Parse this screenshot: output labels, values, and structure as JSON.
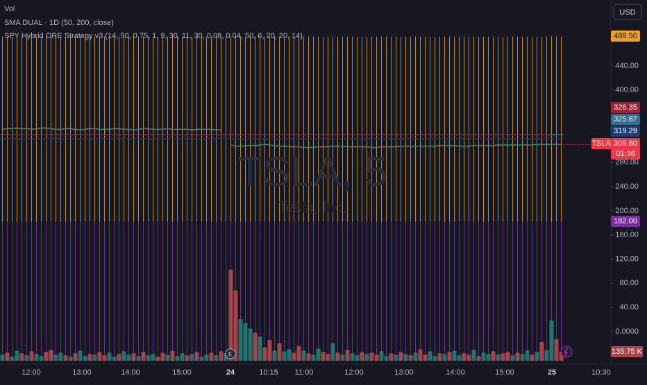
{
  "chart_data": {
    "type": "line",
    "legend": [
      "Vol",
      "SMA DUAL · 1D (50, 200, close)",
      "SPY Hybrid ORE Strategy v3 (14, 50, 0.75, 1, 9, 30, 11, 30, 0.08, 0.04, 50, 6, 20, 20, 14)"
    ],
    "watermark": {
      "symbol": "TSLA, 5",
      "name": "Tesla, Inc."
    },
    "currency": "USD",
    "ylim": [
      -54,
      549
    ],
    "yticks": [
      {
        "value": 440,
        "label": "440.00"
      },
      {
        "value": 400,
        "label": "400.00"
      },
      {
        "value": 280,
        "label": "280.00"
      },
      {
        "value": 240,
        "label": "240.00"
      },
      {
        "value": 200,
        "label": "200.00"
      },
      {
        "value": 160,
        "label": "160.00"
      },
      {
        "value": 120,
        "label": "120.00"
      },
      {
        "value": 80,
        "label": "80.00"
      },
      {
        "value": 40,
        "label": "40.00"
      },
      {
        "value": 0,
        "label": "0.0000"
      }
    ],
    "x_tick_labels": [
      "12:00",
      "13:00",
      "14:00",
      "15:00",
      "24",
      "10:15",
      "11:00",
      "12:00",
      "13:00",
      "14:00",
      "15:00",
      "25",
      "10:30"
    ],
    "levels": [
      {
        "value": 488.5,
        "label": "488.50",
        "color": "#f0a020"
      },
      {
        "value": 326.35,
        "label": "326.35",
        "color": "#9c2330"
      },
      {
        "value": 325.87,
        "label": "325.87",
        "color": "#2f6f93"
      },
      {
        "value": 319.29,
        "label": "319.29",
        "color": "#1d3d78"
      },
      {
        "value": 182,
        "label": "182.00",
        "color": "#7b2ca0"
      }
    ],
    "last_price": {
      "symbol": "TSLA",
      "value": 309.8,
      "label": "309.80",
      "countdown": "01:36",
      "color": "#f23645"
    },
    "series": [
      {
        "name": "TSLA",
        "color": "#2a8f86",
        "dot_color": "#f23645",
        "values": [
          335,
          336,
          336,
          337,
          336,
          336,
          335,
          336,
          337,
          337,
          336,
          335,
          335,
          336,
          336,
          335,
          334,
          335,
          336,
          336,
          335,
          335,
          335,
          336,
          336,
          335,
          335,
          334,
          335,
          336,
          336,
          335,
          335,
          335,
          336,
          335,
          335,
          335,
          335,
          334,
          335,
          335,
          335,
          335,
          334,
          334,
          null,
          309,
          307,
          307,
          308,
          308,
          308,
          309,
          310,
          309,
          308,
          307,
          307,
          306,
          306,
          306,
          305,
          305,
          305,
          306,
          306,
          306,
          307,
          307,
          307,
          306,
          306,
          306,
          306,
          306,
          305,
          305,
          306,
          306,
          306,
          306,
          307,
          307,
          307,
          307,
          307,
          307,
          307,
          307,
          308,
          308,
          308,
          308,
          307,
          307,
          307,
          308,
          308,
          308,
          308,
          308,
          309,
          309,
          309,
          309,
          309,
          309,
          309,
          309,
          310,
          310,
          310,
          310,
          310,
          309.8
        ]
      }
    ],
    "volume": {
      "up_color": "#22756e",
      "down_color": "#a8434b",
      "last_label": "135.75 K",
      "vlim": [
        0,
        1400
      ],
      "values": [
        90,
        120,
        60,
        150,
        110,
        80,
        140,
        100,
        70,
        130,
        160,
        90,
        120,
        80,
        60,
        110,
        150,
        70,
        100,
        90,
        130,
        80,
        120,
        60,
        100,
        140,
        90,
        110,
        70,
        130,
        80,
        100,
        60,
        120,
        90,
        150,
        70,
        110,
        80,
        100,
        130,
        60,
        90,
        120,
        80,
        140,
        110,
        1360,
        1050,
        620,
        560,
        480,
        420,
        360,
        200,
        310,
        150,
        260,
        140,
        170,
        120,
        220,
        150,
        110,
        90,
        180,
        130,
        100,
        260,
        120,
        90,
        160,
        110,
        80,
        130,
        100,
        120,
        90,
        140,
        70,
        110,
        90,
        130,
        100,
        80,
        120,
        170,
        90,
        140,
        70,
        110,
        100,
        130,
        150,
        80,
        110,
        90,
        160,
        70,
        120,
        100,
        140,
        90,
        110,
        130,
        80,
        120,
        100,
        150,
        90,
        130,
        280,
        160,
        600,
        320,
        135.75
      ],
      "rising": [
        true,
        false,
        true,
        true,
        false,
        true,
        false,
        true,
        true,
        false,
        false,
        true,
        true,
        false,
        true,
        false,
        true,
        true,
        false,
        true,
        false,
        false,
        true,
        true,
        false,
        true,
        true,
        false,
        true,
        false,
        true,
        true,
        false,
        false,
        true,
        false,
        true,
        true,
        false,
        true,
        false,
        true,
        true,
        false,
        true,
        false,
        true,
        false,
        false,
        true,
        true,
        true,
        false,
        true,
        false,
        false,
        true,
        false,
        true,
        true,
        false,
        false,
        true,
        false,
        true,
        true,
        false,
        false,
        true,
        false,
        true,
        false,
        true,
        true,
        false,
        true,
        false,
        false,
        true,
        true,
        false,
        true,
        false,
        true,
        false,
        true,
        false,
        false,
        true,
        true,
        false,
        true,
        false,
        true,
        true,
        false,
        false,
        true,
        false,
        true,
        true,
        false,
        true,
        false,
        false,
        true,
        false,
        true,
        true,
        false,
        true,
        false,
        true,
        true,
        false,
        false
      ]
    }
  }
}
